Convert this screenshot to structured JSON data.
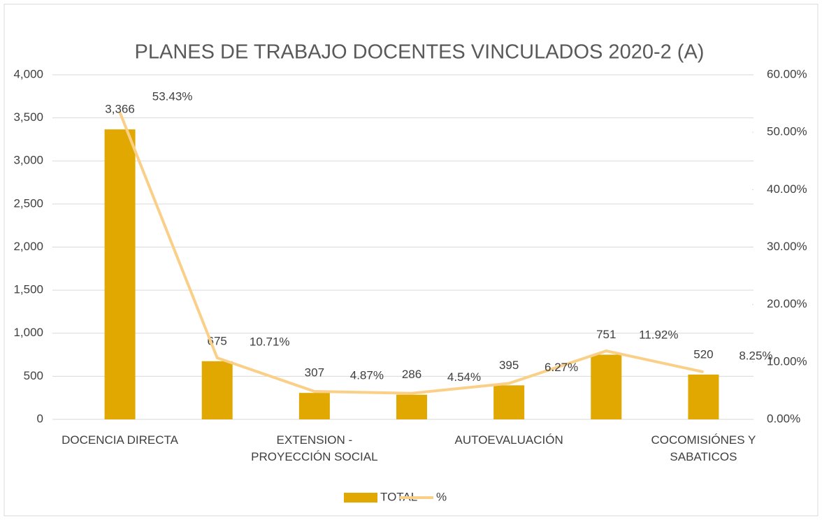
{
  "chart_data": {
    "type": "bar_line",
    "title": "PLANES DE TRABAJO DOCENTES VINCULADOS 2020-2 (A)",
    "categories": [
      "DOCENCIA DIRECTA",
      null,
      "EXTENSION - PROYECCIÓN SOCIAL",
      null,
      "AUTOEVALUACIÓN",
      null,
      "COCOMISIÓNES Y SABATICOS"
    ],
    "series": [
      {
        "name": "TOTAL",
        "type": "bar",
        "color": "#E0A800",
        "values": [
          3366,
          675,
          307,
          286,
          395,
          751,
          520
        ],
        "value_labels": [
          "3,366",
          "675",
          "307",
          "286",
          "395",
          "751",
          "520"
        ]
      },
      {
        "name": "%",
        "type": "line",
        "axis": "y2",
        "color": "#FAD088",
        "values": [
          53.43,
          10.71,
          4.87,
          4.54,
          6.27,
          11.92,
          8.25
        ],
        "value_labels": [
          "53.43%",
          "10.71%",
          "4.87%",
          "4.54%",
          "6.27%",
          "11.92%",
          "8.25%"
        ]
      }
    ],
    "ylim": [
      0,
      4000
    ],
    "yticks": [
      0,
      500,
      {
        "value": 1000,
        "label": "1,000"
      },
      {
        "value": 1500,
        "label": "1,500"
      },
      {
        "value": 2000,
        "label": "2,000"
      },
      {
        "value": 2500,
        "label": "2,500"
      },
      {
        "value": 3000,
        "label": "3,000"
      },
      {
        "value": 3500,
        "label": "3,500"
      },
      {
        "value": 4000,
        "label": "4,000"
      }
    ],
    "y2lim": [
      0,
      60
    ],
    "y2ticks": [
      {
        "value": 0,
        "label": "0.00%"
      },
      {
        "value": 10,
        "label": "10.00%"
      },
      {
        "value": 20,
        "label": "20.00%"
      },
      {
        "value": 30,
        "label": "30.00%"
      },
      {
        "value": 40,
        "label": "40.00%"
      },
      {
        "value": 50,
        "label": "50.00%"
      },
      {
        "value": 60,
        "label": "60.00%"
      }
    ],
    "grid": true,
    "legend": "bottom"
  }
}
